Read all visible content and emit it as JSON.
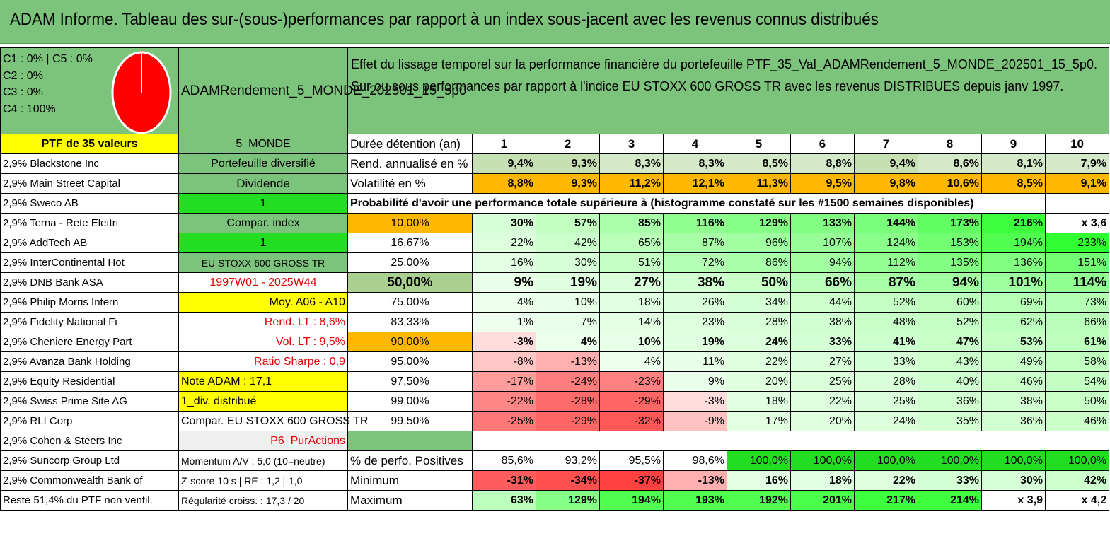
{
  "title": "ADAM Informe. Tableau des sur-(sous-)performances par rapport à un index sous-jacent avec les revenus connus distribués",
  "composition": [
    "C1 : 0% | C5 : 0%",
    "C2 : 0%",
    "C3 : 0%",
    "C4 : 100%"
  ],
  "pie": {
    "label": "C4 : 100%",
    "fill": "#ff0000"
  },
  "fund_name": "ADAMRendement_5_MONDE_202501_15_5p0",
  "effect_text": "Effet du lissage temporel sur la performance financière du portefeuille PTF_35_Val_ADAMRendement_5_MONDE_202501_15_5p0. Sur ou sous performances par rapport à l'indice EU STOXX 600 GROSS TR avec les revenus DISTRIBUES depuis janv 1997.",
  "ptf_header": "PTF de 35 valeurs",
  "universe": "5_MONDE",
  "duree_label": "Durée détention (an)",
  "years": [
    "1",
    "2",
    "3",
    "4",
    "5",
    "6",
    "7",
    "8",
    "9",
    "10"
  ],
  "holdings": [
    "2,9% Blackstone Inc",
    "2,9% Main Street Capital",
    "2,9% Sweco AB",
    "2,9% Terna - Rete Elettri",
    "2,9% AddTech AB",
    "2,9% InterContinental Hot",
    "2,9% DNB Bank ASA",
    "2,9% Philip Morris Intern",
    "2,9% Fidelity National Fi",
    "2,9% Cheniere Energy Part",
    "2,9% Avanza Bank Holding",
    "2,9% Equity Residential",
    "2,9% Swiss Prime Site AG",
    "2,9% RLI Corp",
    "2,9% Cohen & Steers Inc",
    "2,9% Suncorp Group Ltd",
    "2,9% Commonwealth Bank of",
    "Reste 51,4% du PTF non ventil."
  ],
  "info": [
    "Portefeuille diversifié",
    "Dividende",
    "1",
    "Compar. index",
    "1",
    "EU STOXX 600 GROSS TR",
    "1997W01 - 2025W44",
    "Moy. A06 - A10",
    "Rend. LT : 8,6%",
    "Vol. LT : 9,5%",
    "Ratio Sharpe : 0,9",
    "Note ADAM : 17,1",
    "1_div. distribué",
    "Compar. EU STOXX 600 GROSS TR",
    "P6_PurActions",
    "Momentum A/V : 5,0 (10=neutre)",
    "Z-score 10 s | RE : 1,2 |-1,0",
    "Régularité croiss. : 17,3 / 20"
  ],
  "rend": {
    "label": "Rend. annualisé en %",
    "values": [
      "9,4%",
      "9,3%",
      "8,3%",
      "8,3%",
      "8,5%",
      "8,8%",
      "9,4%",
      "8,6%",
      "8,1%",
      "7,9%"
    ]
  },
  "vol": {
    "label": "Volatilité en %",
    "values": [
      "8,8%",
      "9,3%",
      "11,2%",
      "12,1%",
      "11,3%",
      "9,5%",
      "9,8%",
      "10,6%",
      "8,5%",
      "9,1%"
    ]
  },
  "proba_title": "Probabilité d'avoir une performance totale supérieure à (histogramme constaté sur les #1500 semaines disponibles)",
  "prob_rows": [
    {
      "p": "10,00%",
      "v": [
        "30%",
        "57%",
        "85%",
        "116%",
        "129%",
        "133%",
        "144%",
        "173%",
        "216%",
        "x 3,6"
      ]
    },
    {
      "p": "16,67%",
      "v": [
        "22%",
        "42%",
        "65%",
        "87%",
        "96%",
        "107%",
        "124%",
        "153%",
        "194%",
        "233%"
      ]
    },
    {
      "p": "25,00%",
      "v": [
        "16%",
        "30%",
        "51%",
        "72%",
        "86%",
        "94%",
        "112%",
        "135%",
        "136%",
        "151%"
      ]
    },
    {
      "p": "50,00%",
      "v": [
        "9%",
        "19%",
        "27%",
        "38%",
        "50%",
        "66%",
        "87%",
        "94%",
        "101%",
        "114%"
      ]
    },
    {
      "p": "75,00%",
      "v": [
        "4%",
        "10%",
        "18%",
        "26%",
        "34%",
        "44%",
        "52%",
        "60%",
        "69%",
        "73%"
      ]
    },
    {
      "p": "83,33%",
      "v": [
        "1%",
        "7%",
        "14%",
        "23%",
        "28%",
        "38%",
        "48%",
        "52%",
        "62%",
        "66%"
      ]
    },
    {
      "p": "90,00%",
      "v": [
        "-3%",
        "4%",
        "10%",
        "19%",
        "24%",
        "33%",
        "41%",
        "47%",
        "53%",
        "61%"
      ]
    },
    {
      "p": "95,00%",
      "v": [
        "-8%",
        "-13%",
        "4%",
        "11%",
        "22%",
        "27%",
        "33%",
        "43%",
        "49%",
        "58%"
      ]
    },
    {
      "p": "97,50%",
      "v": [
        "-17%",
        "-24%",
        "-23%",
        "9%",
        "20%",
        "25%",
        "28%",
        "40%",
        "46%",
        "54%"
      ]
    },
    {
      "p": "99,00%",
      "v": [
        "-22%",
        "-28%",
        "-29%",
        "-3%",
        "18%",
        "22%",
        "25%",
        "36%",
        "38%",
        "50%"
      ]
    },
    {
      "p": "99,50%",
      "v": [
        "-25%",
        "-29%",
        "-32%",
        "-9%",
        "17%",
        "20%",
        "24%",
        "35%",
        "36%",
        "46%"
      ]
    }
  ],
  "positive": {
    "label": "% de perfo. Positives",
    "values": [
      "85,6%",
      "93,2%",
      "95,5%",
      "98,6%",
      "100,0%",
      "100,0%",
      "100,0%",
      "100,0%",
      "100,0%",
      "100,0%"
    ]
  },
  "minimum": {
    "label": "Minimum",
    "values": [
      "-31%",
      "-34%",
      "-37%",
      "-13%",
      "16%",
      "18%",
      "22%",
      "33%",
      "30%",
      "42%"
    ]
  },
  "maximum": {
    "label": "Maximum",
    "values": [
      "63%",
      "129%",
      "194%",
      "193%",
      "192%",
      "201%",
      "217%",
      "214%",
      "x 3,9",
      "x 4,2"
    ]
  }
}
